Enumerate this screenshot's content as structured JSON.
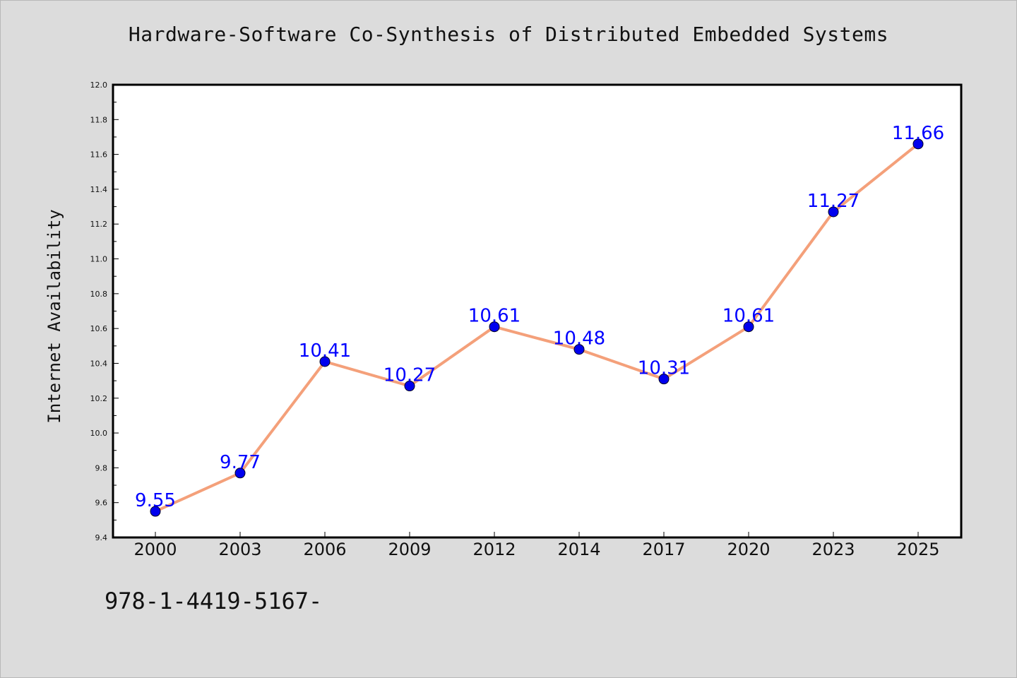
{
  "chart_data": {
    "type": "line",
    "title": "Hardware-Software Co-Synthesis of Distributed Embedded Systems",
    "xlabel": "",
    "ylabel": "Internet Availability",
    "categories": [
      "2000",
      "2003",
      "2006",
      "2009",
      "2012",
      "2014",
      "2017",
      "2020",
      "2023",
      "2025"
    ],
    "series": [
      {
        "values": [
          9.55,
          9.77,
          10.41,
          10.27,
          10.61,
          10.48,
          10.31,
          10.61,
          11.27,
          11.66
        ],
        "labels": [
          "9.55",
          "9.77",
          "10.41",
          "10.27",
          "10.61",
          "10.48",
          "10.31",
          "10.61",
          "11.27",
          "11.66"
        ]
      }
    ],
    "ylim": [
      9.4,
      12.0
    ],
    "yticks": [
      "9.4",
      "9.6",
      "9.8",
      "10.0",
      "10.2",
      "10.4",
      "10.6",
      "10.8",
      "11.0",
      "11.2",
      "11.4",
      "11.6",
      "11.8",
      "12.0"
    ],
    "grid": false,
    "legend": "none",
    "colors": {
      "line": "#f4a07a",
      "marker": "#0000ee",
      "data_label": "#0000ff",
      "plot_background": "#ffffff",
      "figure_background": "#dcdcdc"
    }
  },
  "footer": {
    "code": "978-1-4419-5167-"
  }
}
